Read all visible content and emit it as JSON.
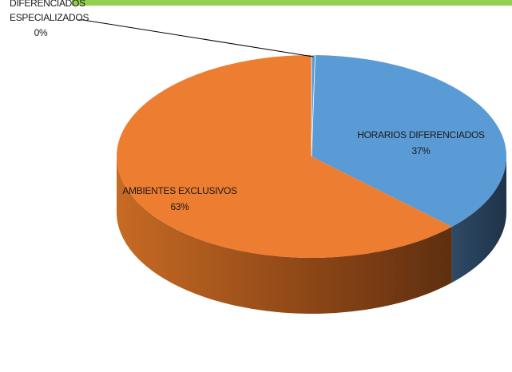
{
  "chart_data": {
    "type": "pie",
    "style": "3d",
    "title": "",
    "slices": [
      {
        "label_line1": "DIFERENCIADOS",
        "label_line2": "ESPECIALIZADOS",
        "percent_label": "0%",
        "value": 0.3,
        "color": "#5b9bd5"
      },
      {
        "label_line1": "HORARIOS DIFERENCIADOS",
        "label_line2": "",
        "percent_label": "37%",
        "value": 37,
        "color": "#5b9bd5"
      },
      {
        "label_line1": "AMBIENTES EXCLUSIVOS",
        "label_line2": "",
        "percent_label": "63%",
        "value": 63,
        "color": "#ed7d31"
      }
    ],
    "legend": "none"
  },
  "decor": {
    "top_bar_color": "#92d050"
  }
}
